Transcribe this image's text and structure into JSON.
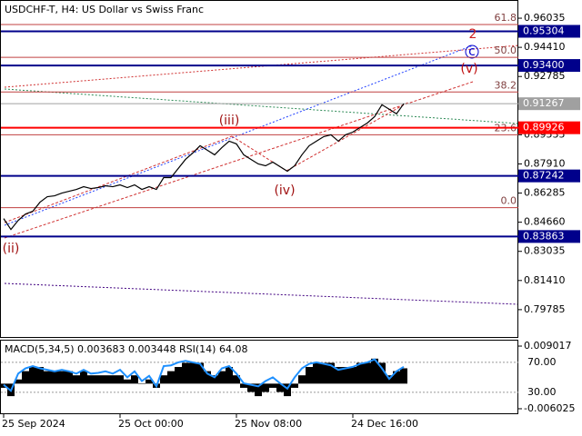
{
  "chart_data": [
    {
      "type": "line",
      "title": "USDCHF-T, H4:  US Dollar vs Swiss Franc",
      "categories": [
        "25 Sep 2024",
        null,
        null,
        null,
        null,
        null,
        null,
        null,
        null,
        null,
        null,
        null,
        null,
        null,
        null,
        null,
        "25 Oct 00:00",
        null,
        null,
        null,
        null,
        null,
        null,
        null,
        null,
        null,
        null,
        null,
        null,
        null,
        null,
        null,
        "25 Nov 08:00",
        null,
        null,
        null,
        null,
        null,
        null,
        null,
        null,
        null,
        null,
        null,
        null,
        null,
        null,
        null,
        "24 Dec 16:00",
        null,
        null,
        null,
        null,
        null,
        null,
        null
      ],
      "values": [
        0.84863,
        0.84254,
        0.84762,
        0.85117,
        0.85269,
        0.85777,
        0.86082,
        0.86133,
        0.86285,
        0.86387,
        0.86488,
        0.8664,
        0.86539,
        0.8659,
        0.86691,
        0.8664,
        0.86742,
        0.8659,
        0.86742,
        0.86488,
        0.8664,
        0.86488,
        0.87148,
        0.87148,
        0.87656,
        0.88164,
        0.88519,
        0.88926,
        0.88672,
        0.88418,
        0.88824,
        0.8918,
        0.89027,
        0.88418,
        0.88164,
        0.8791,
        0.87808,
        0.88012,
        0.87758,
        0.87504,
        0.87808,
        0.88418,
        0.88926,
        0.8918,
        0.89433,
        0.89535,
        0.8918,
        0.89535,
        0.89687,
        0.89941,
        0.90195,
        0.90551,
        0.91211,
        0.90957,
        0.90703,
        0.91267
      ],
      "color": "#000000",
      "ylim": [
        0.7826,
        0.9705
      ],
      "yticks": [
        0.96035,
        {
          "value": 0.9441,
          "label": "0.94410"
        },
        0.92785,
        0.89535,
        {
          "value": 0.8791,
          "label": "0.87910"
        },
        0.86285,
        {
          "value": 0.8466,
          "label": "0.84660"
        },
        0.83035,
        {
          "value": 0.8141,
          "label": "0.81410"
        },
        0.79785
      ],
      "levels": [
        {
          "value": 0.95304,
          "color": "#00008b"
        },
        {
          "value": 0.934,
          "label": "0.93400",
          "color": "#00008b"
        },
        {
          "value": 0.91267,
          "color": "#a0a0a0"
        },
        {
          "value": 0.89926,
          "color": "#ff0000"
        },
        {
          "value": 0.87242,
          "color": "#00008b"
        },
        {
          "value": 0.83863,
          "color": "#00008b"
        }
      ],
      "fib_levels": [
        {
          "name": "61.8",
          "value": 0.9568
        },
        {
          "name": "50.0",
          "value": 0.93851
        },
        {
          "name": "38.2",
          "value": 0.91922
        },
        {
          "name": "23.6",
          "value": 0.89535
        },
        {
          "name": "0.0",
          "value": 0.85473
        }
      ],
      "annotations": [
        "(iii)",
        "(iv)",
        "(ii)",
        "(v)",
        "2",
        "c"
      ]
    },
    {
      "type": "macd",
      "title": "MACD(5,34,5) 0.003683 0.003448 RSI(14) 64.08",
      "values": [
        -0.001,
        -0.003,
        0.001,
        0.003,
        0.004,
        0.004,
        0.003,
        0.003,
        0.003,
        0.003,
        0.002,
        0.003,
        0.002,
        0.002,
        0.002,
        0.002,
        0.002,
        0.001,
        0.002,
        0,
        0.001,
        -0.001,
        0.002,
        0.003,
        0.004,
        0.005,
        0.005,
        0.005,
        0.003,
        0.002,
        0.003,
        0.004,
        0.002,
        -0.001,
        -0.002,
        -0.003,
        -0.002,
        -0.001,
        -0.002,
        -0.003,
        -0.001,
        0.002,
        0.004,
        0.005,
        0.005,
        0.005,
        0.004,
        0.004,
        0.004,
        0.005,
        0.005,
        0.006,
        0.005,
        0.002,
        0.003,
        0.003683
      ],
      "color": "#000000",
      "rsi": {
        "color": "#1e90ff",
        "axis": "y2",
        "values": [
          40,
          32,
          55,
          62,
          65,
          62,
          60,
          58,
          60,
          58,
          55,
          60,
          55,
          56,
          58,
          55,
          60,
          50,
          58,
          45,
          52,
          38,
          65,
          66,
          70,
          72,
          70,
          68,
          55,
          50,
          62,
          65,
          55,
          42,
          40,
          38,
          45,
          50,
          42,
          35,
          50,
          62,
          68,
          70,
          68,
          66,
          60,
          62,
          64,
          68,
          70,
          74,
          62,
          48,
          58,
          64.08
        ]
      },
      "ylim": [
        -0.00712,
        0.01033
      ],
      "yticks": [
        0.009017,
        -0.006025
      ],
      "y2lim": [
        2,
        99
      ],
      "y2ticks": [
        {
          "value": 70,
          "label": "70.00"
        },
        {
          "value": 30,
          "label": "30.00"
        }
      ]
    }
  ]
}
